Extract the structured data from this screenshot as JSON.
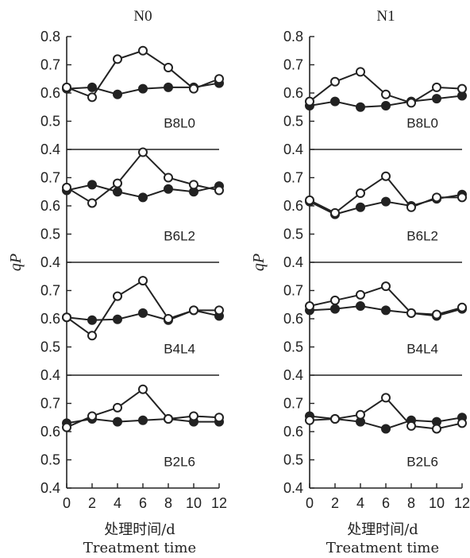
{
  "chart_data": {
    "type": "line",
    "ylabel": "qP",
    "xlabel_cn": "处理时间/d",
    "xlabel_en": "Treatment time",
    "x": [
      0,
      2,
      4,
      6,
      8,
      10,
      12
    ],
    "ylim": [
      0.4,
      0.8
    ],
    "yticks": [
      "0.4",
      "0.5",
      "0.6",
      "0.7",
      "0.8"
    ],
    "columns": [
      {
        "title": "N0",
        "panels": [
          {
            "label": "B8L0",
            "series": [
              {
                "marker": "open",
                "values": [
                  0.62,
                  0.585,
                  0.72,
                  0.75,
                  0.69,
                  0.615,
                  0.65
                ]
              },
              {
                "marker": "filled",
                "values": [
                  0.615,
                  0.62,
                  0.595,
                  0.615,
                  0.62,
                  0.62,
                  0.635
                ]
              }
            ]
          },
          {
            "label": "B6L2",
            "series": [
              {
                "marker": "open",
                "values": [
                  0.665,
                  0.61,
                  0.68,
                  0.79,
                  0.7,
                  0.675,
                  0.655
                ]
              },
              {
                "marker": "filled",
                "values": [
                  0.655,
                  0.675,
                  0.65,
                  0.63,
                  0.66,
                  0.65,
                  0.67
                ]
              }
            ]
          },
          {
            "label": "B4L4",
            "series": [
              {
                "marker": "open",
                "values": [
                  0.605,
                  0.54,
                  0.68,
                  0.735,
                  0.6,
                  0.63,
                  0.63
                ]
              },
              {
                "marker": "filled",
                "values": [
                  0.605,
                  0.595,
                  0.598,
                  0.62,
                  0.595,
                  0.63,
                  0.61
                ]
              }
            ]
          },
          {
            "label": "B2L6",
            "series": [
              {
                "marker": "open",
                "values": [
                  0.615,
                  0.655,
                  0.685,
                  0.75,
                  0.645,
                  0.655,
                  0.65
                ]
              },
              {
                "marker": "filled",
                "values": [
                  0.63,
                  0.645,
                  0.635,
                  0.64,
                  0.645,
                  0.635,
                  0.635
                ]
              }
            ]
          }
        ]
      },
      {
        "title": "N1",
        "panels": [
          {
            "label": "B8L0",
            "series": [
              {
                "marker": "open",
                "values": [
                  0.57,
                  0.64,
                  0.675,
                  0.595,
                  0.565,
                  0.62,
                  0.615
                ]
              },
              {
                "marker": "filled",
                "values": [
                  0.555,
                  0.57,
                  0.55,
                  0.555,
                  0.57,
                  0.58,
                  0.59
                ]
              }
            ]
          },
          {
            "label": "B6L2",
            "series": [
              {
                "marker": "open",
                "values": [
                  0.62,
                  0.575,
                  0.645,
                  0.705,
                  0.595,
                  0.63,
                  0.63
                ]
              },
              {
                "marker": "filled",
                "values": [
                  0.615,
                  0.57,
                  0.595,
                  0.615,
                  0.6,
                  0.625,
                  0.64
                ]
              }
            ]
          },
          {
            "label": "B4L4",
            "series": [
              {
                "marker": "open",
                "values": [
                  0.645,
                  0.665,
                  0.685,
                  0.715,
                  0.62,
                  0.615,
                  0.64
                ]
              },
              {
                "marker": "filled",
                "values": [
                  0.63,
                  0.635,
                  0.645,
                  0.63,
                  0.62,
                  0.61,
                  0.635
                ]
              }
            ]
          },
          {
            "label": "B2L6",
            "series": [
              {
                "marker": "open",
                "values": [
                  0.64,
                  0.645,
                  0.66,
                  0.72,
                  0.62,
                  0.61,
                  0.63
                ]
              },
              {
                "marker": "filled",
                "values": [
                  0.655,
                  0.645,
                  0.635,
                  0.61,
                  0.64,
                  0.635,
                  0.65
                ]
              }
            ]
          }
        ]
      }
    ]
  }
}
